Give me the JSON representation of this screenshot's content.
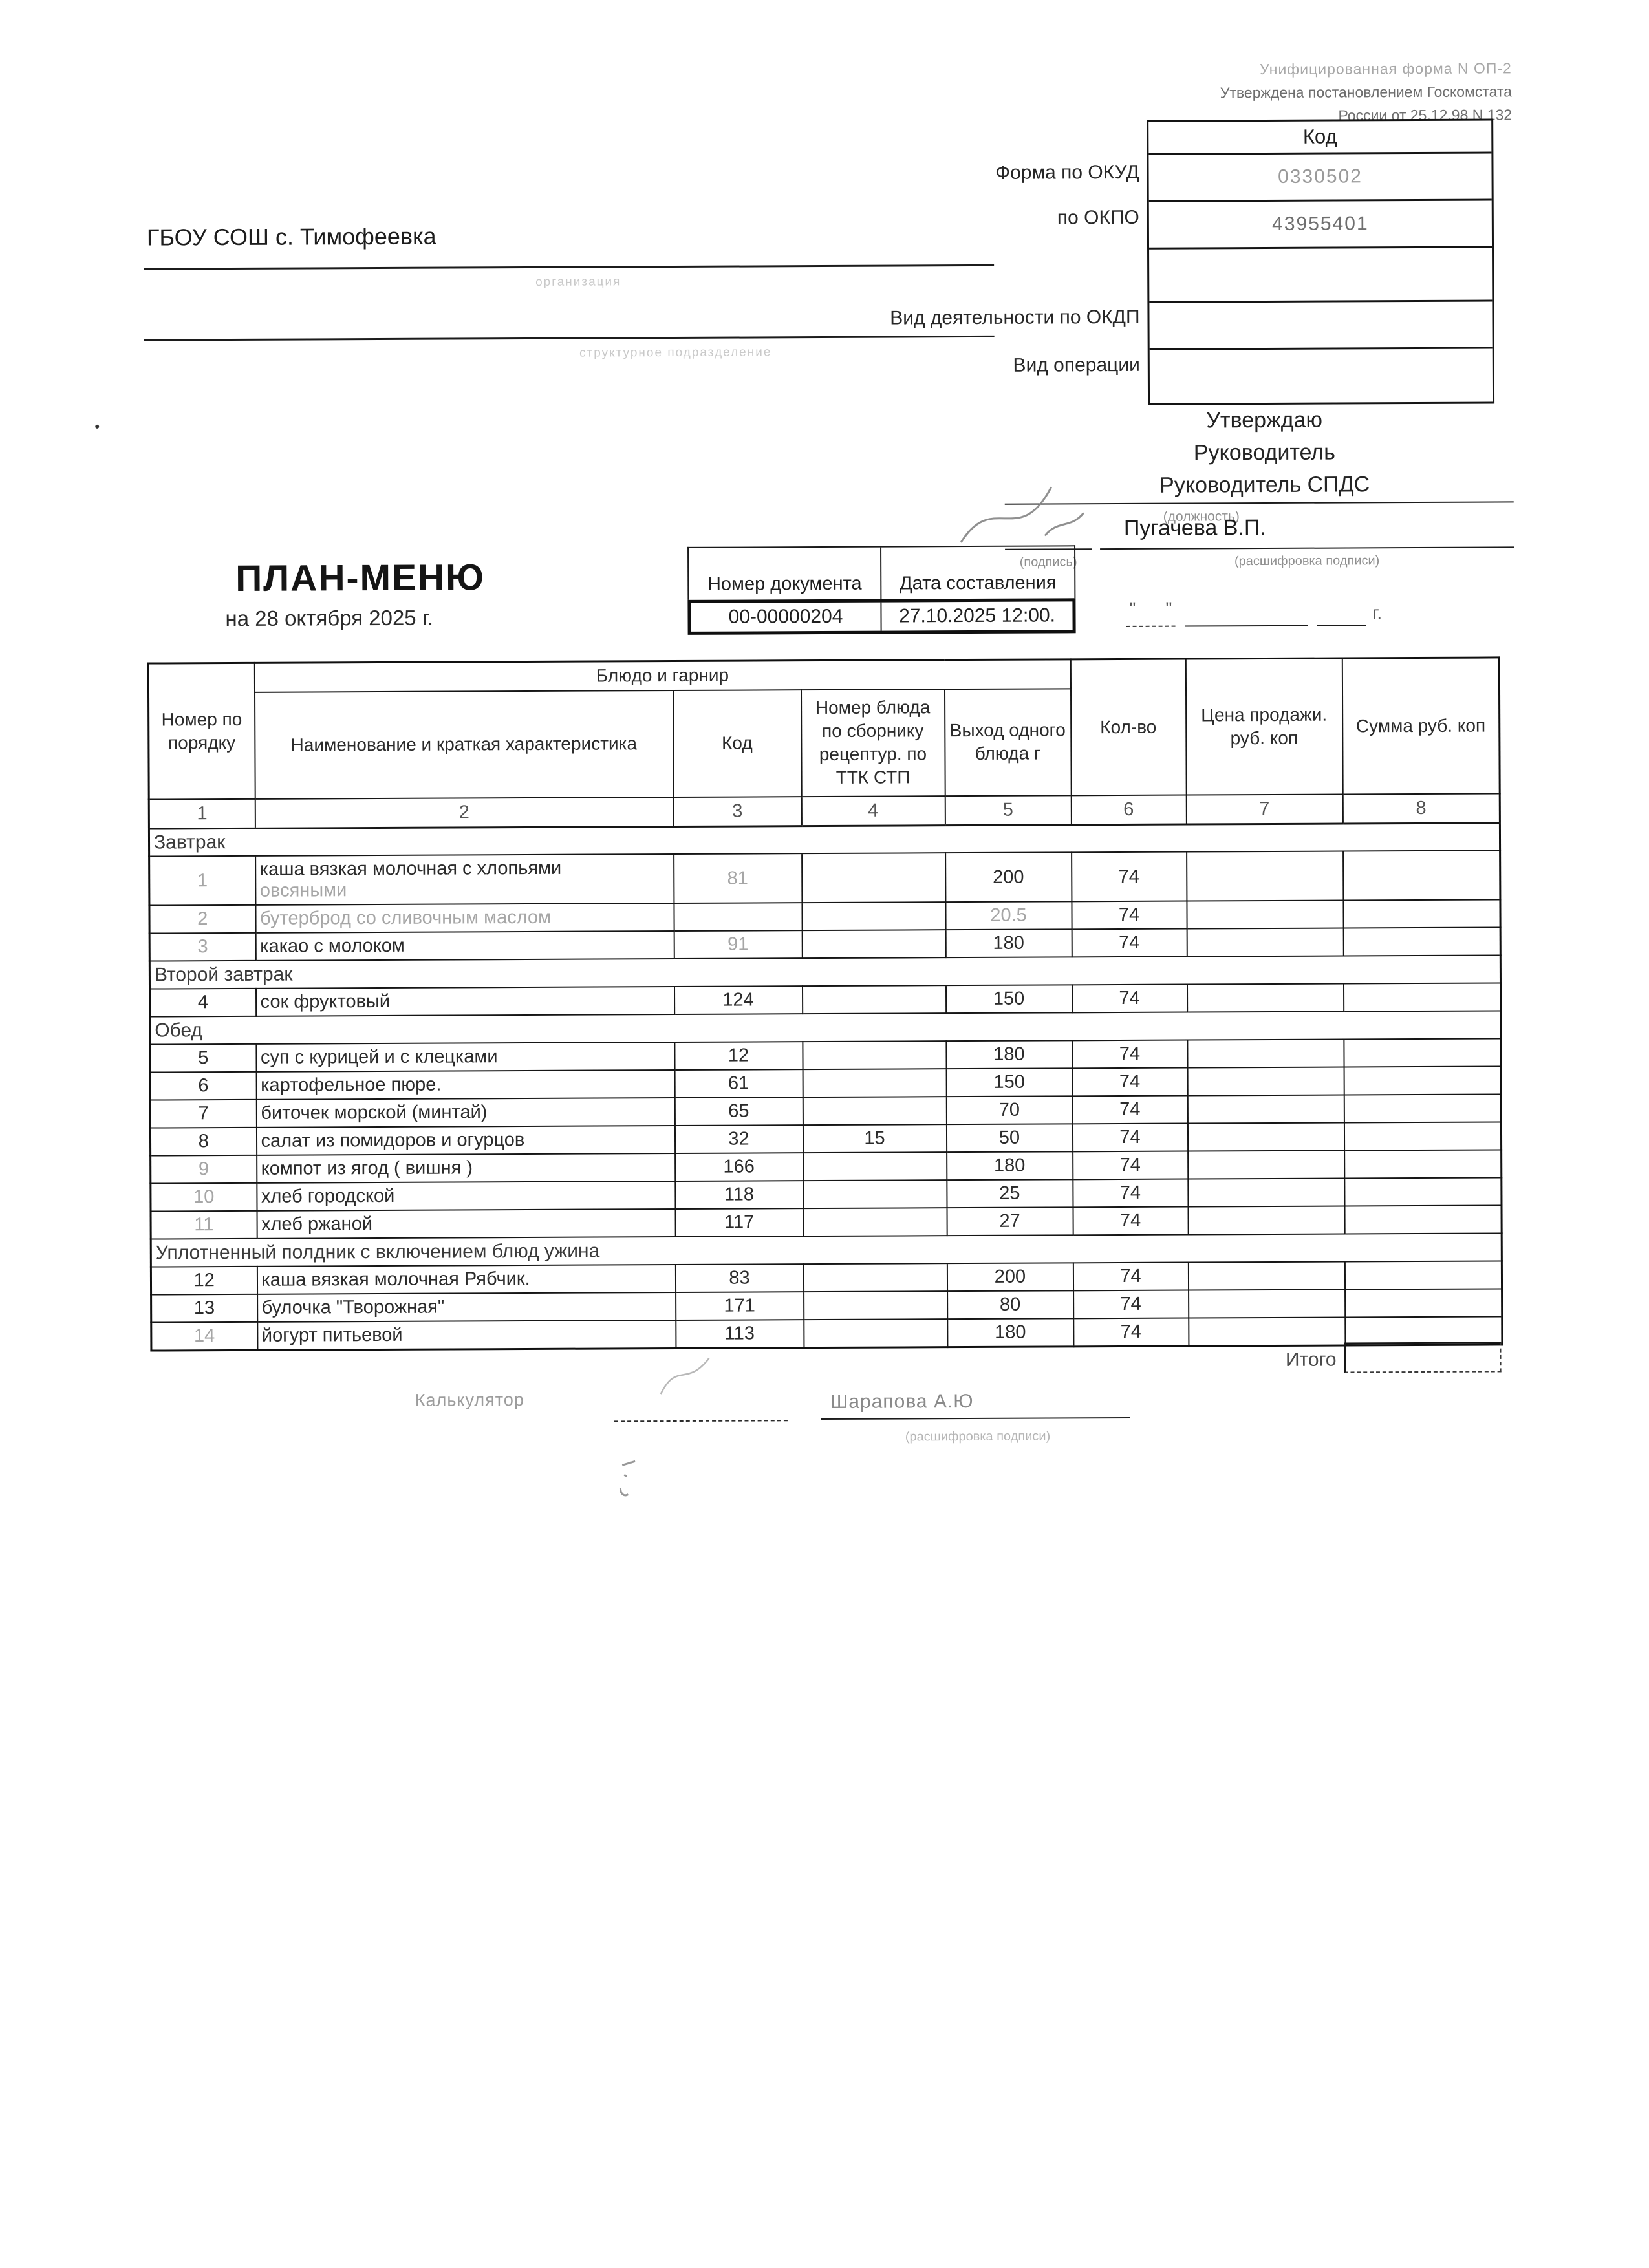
{
  "header_note": {
    "line1": "Унифицированная форма N ОП-2",
    "line2": "Утверждена постановлением Госкомстата",
    "line3": "России от 25.12.98 N 132"
  },
  "code_box": {
    "title": "Код",
    "rows": [
      {
        "label": "Форма по ОКУД",
        "value": "0330502"
      },
      {
        "label": "по ОКПО",
        "value": "43955401"
      },
      {
        "label": "",
        "value": ""
      },
      {
        "label": "Вид деятельности по ОКДП",
        "value": ""
      },
      {
        "label": "Вид операции",
        "value": ""
      }
    ]
  },
  "organization": {
    "name": "ГБОУ СОШ с. Тимофеевка",
    "label1": "организация",
    "label2": "структурное подразделение"
  },
  "approve": {
    "title": "Утверждаю",
    "line1": "Руководитель",
    "line2": "Руководитель СПДС",
    "position_label": "(должность)",
    "signer_name": "Пугачева В.П.",
    "sign_label": "(подпись)",
    "decrypt_label": "(расшифровка подписи)"
  },
  "doc": {
    "title": "ПЛАН-МЕНЮ",
    "subtitle": "на 28 октября 2025 г.",
    "number_label": "Номер документа",
    "date_label": "Дата составления",
    "number": "00-00000204",
    "date": "27.10.2025 12:00.",
    "quote1": "\"",
    "quote2": "\"",
    "year_suffix": "г."
  },
  "table": {
    "group_header": "Блюдо и гарнир",
    "col_headers": [
      "Номер по порядку",
      "Наименование и краткая характеристика",
      "Код",
      "Номер блюда по сборнику рецептур. по ТТК СТП",
      "Выход одного блюда  г",
      "Кол-во",
      "Цена продажи. руб. коп",
      "Сумма руб. коп"
    ],
    "col_numbers": [
      "1",
      "2",
      "3",
      "4",
      "5",
      "6",
      "7",
      "8"
    ],
    "sections": [
      {
        "title": "Завтрак",
        "rows": [
          {
            "num": "1",
            "name": "каша вязкая молочная с хлопьями",
            "name2": "овсяными",
            "code": "81",
            "recipe": "",
            "out": "200",
            "qty": "74",
            "price": "",
            "sum": "",
            "tall": true,
            "faint": [
              "num",
              "code",
              "name2"
            ]
          },
          {
            "num": "2",
            "name": "бутерброд со сливочным маслом",
            "name2": "",
            "code": "",
            "recipe": "",
            "out": "20.5",
            "qty": "74",
            "price": "",
            "sum": "",
            "faint": [
              "num",
              "name",
              "out"
            ]
          },
          {
            "num": "3",
            "name": "какао с молоком",
            "name2": "",
            "code": "91",
            "recipe": "",
            "out": "180",
            "qty": "74",
            "price": "",
            "sum": "",
            "faint": [
              "num",
              "code"
            ]
          }
        ]
      },
      {
        "title": "Второй завтрак",
        "rows": [
          {
            "num": "4",
            "name": "сок фруктовый",
            "name2": "",
            "code": "124",
            "recipe": "",
            "out": "150",
            "qty": "74",
            "price": "",
            "sum": "",
            "faint": []
          }
        ]
      },
      {
        "title": "Обед",
        "rows": [
          {
            "num": "5",
            "name": "суп с курицей  и с клецками",
            "name2": "",
            "code": "12",
            "recipe": "",
            "out": "180",
            "qty": "74",
            "price": "",
            "sum": "",
            "faint": []
          },
          {
            "num": "6",
            "name": "картофельное пюре.",
            "name2": "",
            "code": "61",
            "recipe": "",
            "out": "150",
            "qty": "74",
            "price": "",
            "sum": "",
            "faint": []
          },
          {
            "num": "7",
            "name": "биточек морской  (минтай)",
            "name2": "",
            "code": "65",
            "recipe": "",
            "out": "70",
            "qty": "74",
            "price": "",
            "sum": "",
            "faint": []
          },
          {
            "num": "8",
            "name": "салат из помидоров и огурцов",
            "name2": "",
            "code": "32",
            "recipe": "15",
            "out": "50",
            "qty": "74",
            "price": "",
            "sum": "",
            "faint": []
          },
          {
            "num": "9",
            "name": "компот из ягод ( вишня )",
            "name2": "",
            "code": "166",
            "recipe": "",
            "out": "180",
            "qty": "74",
            "price": "",
            "sum": "",
            "faint": [
              "num"
            ]
          },
          {
            "num": "10",
            "name": "хлеб городской",
            "name2": "",
            "code": "118",
            "recipe": "",
            "out": "25",
            "qty": "74",
            "price": "",
            "sum": "",
            "faint": [
              "num"
            ]
          },
          {
            "num": "11",
            "name": "хлеб ржаной",
            "name2": "",
            "code": "117",
            "recipe": "",
            "out": "27",
            "qty": "74",
            "price": "",
            "sum": "",
            "faint": [
              "num"
            ]
          }
        ]
      },
      {
        "title": "Уплотненный полдник с включением блюд ужина",
        "rows": [
          {
            "num": "12",
            "name": "каша вязкая молочная Рябчик.",
            "name2": "",
            "code": "83",
            "recipe": "",
            "out": "200",
            "qty": "74",
            "price": "",
            "sum": "",
            "faint": []
          },
          {
            "num": "13",
            "name": "булочка \"Творожная\"",
            "name2": "",
            "code": "171",
            "recipe": "",
            "out": "80",
            "qty": "74",
            "price": "",
            "sum": "",
            "faint": []
          },
          {
            "num": "14",
            "name": "йогурт питьевой",
            "name2": "",
            "code": "113",
            "recipe": "",
            "out": "180",
            "qty": "74",
            "price": "",
            "sum": "",
            "faint": [
              "num"
            ]
          }
        ]
      }
    ],
    "total_label": "Итого"
  },
  "footer": {
    "calculator_label": "Калькулятор",
    "signer_name": "Шарапова А.Ю",
    "decrypt_label": "(расшифровка подписи)"
  }
}
